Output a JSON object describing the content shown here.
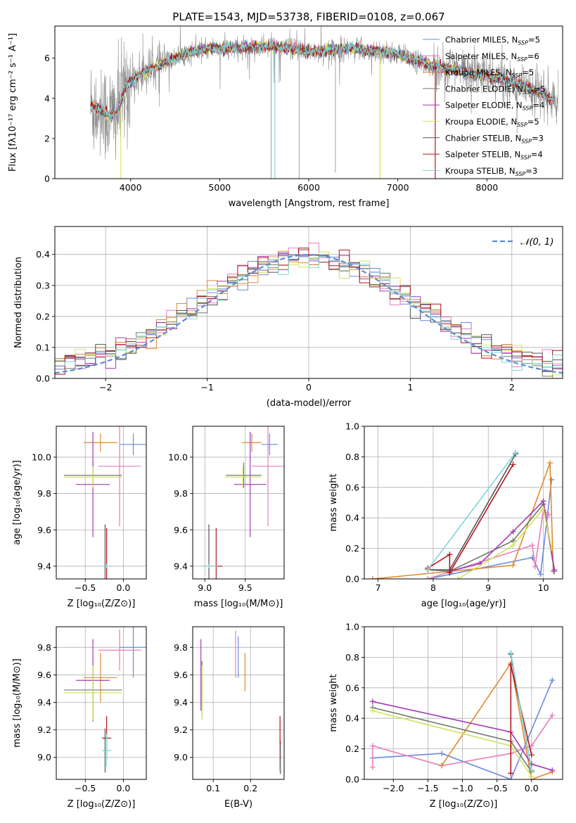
{
  "colors": {
    "chabrier_miles": "#6a8ad8",
    "salpeter_miles": "#e57fbd",
    "kroupa_miles": "#e08a2e",
    "chabrier_elodie": "#6f7a6f",
    "salpeter_elodie": "#a23ab4",
    "kroupa_elodie": "#d2e35a",
    "chabrier_stelib": "#555555",
    "salpeter_stelib": "#b3151f",
    "kroupa_stelib": "#7fd6d6",
    "spectrum": "#8a8a8a",
    "gaussian": "#5b8bd4"
  },
  "legend1": [
    {
      "key": "chabrier_miles",
      "label": "Chabrier MILES, N",
      "sub": "SSP",
      "n": "=5"
    },
    {
      "key": "salpeter_miles",
      "label": "Salpeter MILES, N",
      "sub": "SSP",
      "n": "=6"
    },
    {
      "key": "kroupa_miles",
      "label": "Kroupa MILES, N",
      "sub": "SSP",
      "n": "=5"
    },
    {
      "key": "chabrier_elodie",
      "label": "Chabrier ELODIE, N",
      "sub": "SSP",
      "n": "=5"
    },
    {
      "key": "salpeter_elodie",
      "label": "Salpeter ELODIE, N",
      "sub": "SSP",
      "n": "=4"
    },
    {
      "key": "kroupa_elodie",
      "label": "Kroupa ELODIE, N",
      "sub": "SSP",
      "n": "=5"
    },
    {
      "key": "chabrier_stelib",
      "label": "Chabrier STELIB, N",
      "sub": "SSP",
      "n": "=3"
    },
    {
      "key": "salpeter_stelib",
      "label": "Salpeter STELIB, N",
      "sub": "SSP",
      "n": "=4"
    },
    {
      "key": "kroupa_stelib",
      "label": "Kroupa STELIB, N",
      "sub": "SSP",
      "n": "=3"
    }
  ],
  "chart_data": [
    {
      "id": "spectrum",
      "type": "line",
      "title": "PLATE=1543, MJD=53738, FIBERID=0108, z=0.067",
      "xlabel": "wavelength [Angstrom, rest frame]",
      "ylabel": "Flux [fλ10⁻¹⁷ erg cm⁻² s⁻¹ A⁻¹]",
      "xlim": [
        3150,
        8850
      ],
      "ylim": [
        0,
        7.6
      ],
      "xticks": [
        4000,
        5000,
        6000,
        7000,
        8000
      ],
      "yticks": [
        0,
        2,
        4,
        6
      ],
      "continuum": [
        [
          3560,
          3.6
        ],
        [
          3650,
          3.5
        ],
        [
          3750,
          3.1
        ],
        [
          3850,
          3.3
        ],
        [
          3950,
          4.6
        ],
        [
          4100,
          5.2
        ],
        [
          4300,
          5.6
        ],
        [
          4600,
          6.2
        ],
        [
          4900,
          6.5
        ],
        [
          5200,
          6.5
        ],
        [
          5600,
          6.6
        ],
        [
          6000,
          6.3
        ],
        [
          6500,
          6.5
        ],
        [
          7000,
          6.2
        ],
        [
          7400,
          5.6
        ],
        [
          7800,
          5.3
        ],
        [
          8200,
          4.9
        ],
        [
          8500,
          4.5
        ],
        [
          8800,
          3.8
        ]
      ],
      "data_range": [
        3550,
        8800
      ],
      "model_range": [
        3550,
        8750
      ],
      "legend_loc": "upper right"
    },
    {
      "id": "residuals",
      "type": "step",
      "xlabel": "(data-model)/error",
      "ylabel": "Normed distribution",
      "xlim": [
        -2.5,
        2.5
      ],
      "ylim": [
        0,
        0.49
      ],
      "xticks": [
        -2,
        -1,
        0,
        1,
        2
      ],
      "yticks": [
        0.0,
        0.1,
        0.2,
        0.3,
        0.4
      ],
      "grid": true,
      "gaussian_label": "𝒩(0, 1)",
      "legend_loc": "upper right"
    },
    {
      "id": "age_vs_Z",
      "type": "errorbar",
      "xlabel": "Z [log₁₀(Z/Z⊙)]",
      "ylabel": "age  [log₁₀(age/yr)]",
      "xlim": [
        -0.88,
        0.3
      ],
      "ylim": [
        9.33,
        10.17
      ],
      "xticks": [
        -0.5,
        0.0
      ],
      "yticks": [
        9.4,
        9.6,
        9.8,
        10.0
      ],
      "grid": true,
      "points": [
        {
          "key": "chabrier_miles",
          "x": 0.13,
          "xerr": 0.18,
          "y": 10.07,
          "yerr": 0.06
        },
        {
          "key": "salpeter_miles",
          "x": -0.05,
          "xerr": 0.28,
          "y": 9.95,
          "yerr": 0.33
        },
        {
          "key": "kroupa_miles",
          "x": -0.3,
          "xerr": 0.22,
          "y": 10.08,
          "yerr": 0.05
        },
        {
          "key": "chabrier_elodie",
          "x": -0.4,
          "xerr": 0.38,
          "y": 9.9,
          "yerr": 0.07
        },
        {
          "key": "salpeter_elodie",
          "x": -0.4,
          "xerr": 0.22,
          "y": 9.85,
          "yerr": 0.29
        },
        {
          "key": "kroupa_elodie",
          "x": -0.4,
          "xerr": 0.38,
          "y": 9.89,
          "yerr": 0.06
        },
        {
          "key": "chabrier_stelib",
          "x": -0.24,
          "xerr": 0.02,
          "y": 9.4,
          "yerr": 0.23
        },
        {
          "key": "salpeter_stelib",
          "x": -0.22,
          "xerr": 0.02,
          "y": 9.4,
          "yerr": 0.21
        },
        {
          "key": "kroupa_stelib",
          "x": -0.22,
          "xerr": 0.06,
          "y": 9.4,
          "yerr": 0.01
        }
      ]
    },
    {
      "id": "age_vs_mass",
      "type": "errorbar",
      "xlabel": "mass [log₁₀(M/M⊙)]",
      "ylabel": "",
      "xlim": [
        8.85,
        9.98
      ],
      "ylim": [
        9.33,
        10.17
      ],
      "xticks": [
        9.0,
        9.5
      ],
      "yticks": [
        9.4,
        9.6,
        9.8,
        10.0
      ],
      "grid": true,
      "points": [
        {
          "key": "chabrier_miles",
          "x": 9.8,
          "xerr": 0.1,
          "y": 10.07,
          "yerr": 0.06
        },
        {
          "key": "salpeter_miles",
          "x": 9.78,
          "xerr": 0.2,
          "y": 9.95,
          "yerr": 0.33
        },
        {
          "key": "kroupa_miles",
          "x": 9.58,
          "xerr": 0.12,
          "y": 10.08,
          "yerr": 0.05
        },
        {
          "key": "chabrier_elodie",
          "x": 9.48,
          "xerr": 0.22,
          "y": 9.9,
          "yerr": 0.07
        },
        {
          "key": "salpeter_elodie",
          "x": 9.56,
          "xerr": 0.2,
          "y": 9.85,
          "yerr": 0.29
        },
        {
          "key": "kroupa_elodie",
          "x": 9.47,
          "xerr": 0.22,
          "y": 9.89,
          "yerr": 0.06
        },
        {
          "key": "chabrier_stelib",
          "x": 9.05,
          "xerr": 0.08,
          "y": 9.4,
          "yerr": 0.23
        },
        {
          "key": "salpeter_stelib",
          "x": 9.14,
          "xerr": 0.08,
          "y": 9.4,
          "yerr": 0.21
        },
        {
          "key": "kroupa_stelib",
          "x": 9.05,
          "xerr": 0.1,
          "y": 9.4,
          "yerr": 0.01
        }
      ]
    },
    {
      "id": "weight_vs_age",
      "type": "line",
      "xlabel": "age  [log₁₀(age/yr)]",
      "ylabel": "mass weight",
      "xlim": [
        6.75,
        10.35
      ],
      "ylim": [
        0,
        1.0
      ],
      "xticks": [
        7,
        8,
        9,
        10
      ],
      "yticks": [
        0.0,
        0.2,
        0.4,
        0.6,
        0.8,
        1.0
      ],
      "grid": true,
      "series": [
        {
          "key": "chabrier_miles",
          "x": [
            7.9,
            9.8,
            9.95,
            10.15
          ],
          "y": [
            0.0,
            0.14,
            0.03,
            0.65
          ]
        },
        {
          "key": "salpeter_miles",
          "x": [
            7.9,
            9.8,
            9.85,
            10.0,
            10.1
          ],
          "y": [
            0.0,
            0.22,
            0.08,
            0.45,
            0.42
          ]
        },
        {
          "key": "kroupa_miles",
          "x": [
            6.9,
            9.45,
            10.12,
            10.18
          ],
          "y": [
            0.0,
            0.09,
            0.76,
            0.05
          ]
        },
        {
          "key": "chabrier_elodie",
          "x": [
            7.9,
            8.3,
            9.45,
            10.0,
            10.2
          ],
          "y": [
            0.06,
            0.05,
            0.25,
            0.49,
            0.05
          ]
        },
        {
          "key": "salpeter_elodie",
          "x": [
            8.3,
            8.85,
            9.45,
            10.0,
            10.2
          ],
          "y": [
            0.05,
            0.1,
            0.31,
            0.51,
            0.06
          ]
        },
        {
          "key": "kroupa_elodie",
          "x": [
            8.45,
            9.45,
            10.0,
            10.15
          ],
          "y": [
            0.0,
            0.22,
            0.46,
            0.2
          ]
        },
        {
          "key": "chabrier_stelib",
          "x": [
            7.9,
            8.3,
            9.5
          ],
          "y": [
            0.06,
            0.06,
            0.82
          ]
        },
        {
          "key": "salpeter_stelib",
          "x": [
            7.9,
            8.3,
            8.3,
            9.45
          ],
          "y": [
            0.07,
            0.16,
            0.04,
            0.75
          ]
        },
        {
          "key": "kroupa_stelib",
          "x": [
            7.9,
            9.5
          ],
          "y": [
            0.06,
            0.83
          ]
        }
      ]
    },
    {
      "id": "mass_vs_Z",
      "type": "errorbar",
      "xlabel": "Z [log₁₀(Z/Z⊙)]",
      "ylabel": "mass [log₁₀(M/M⊙)]",
      "xlim": [
        -0.88,
        0.3
      ],
      "ylim": [
        8.84,
        9.95
      ],
      "xticks": [
        -0.5,
        0.0
      ],
      "yticks": [
        9.0,
        9.2,
        9.4,
        9.6,
        9.8
      ],
      "grid": true,
      "points": [
        {
          "key": "chabrier_miles",
          "x": 0.13,
          "xerr": 0.18,
          "y": 9.8,
          "yerr": 0.22
        },
        {
          "key": "salpeter_miles",
          "x": -0.05,
          "xerr": 0.28,
          "y": 9.78,
          "yerr": 0.15
        },
        {
          "key": "kroupa_miles",
          "x": -0.3,
          "xerr": 0.22,
          "y": 9.58,
          "yerr": 0.18
        },
        {
          "key": "chabrier_elodie",
          "x": -0.4,
          "xerr": 0.38,
          "y": 9.49,
          "yerr": 0.2
        },
        {
          "key": "salpeter_elodie",
          "x": -0.4,
          "xerr": 0.22,
          "y": 9.56,
          "yerr": 0.3
        },
        {
          "key": "kroupa_elodie",
          "x": -0.4,
          "xerr": 0.38,
          "y": 9.47,
          "yerr": 0.2
        },
        {
          "key": "chabrier_stelib",
          "x": -0.24,
          "xerr": 0.02,
          "y": 9.05,
          "yerr": 0.16
        },
        {
          "key": "salpeter_stelib",
          "x": -0.22,
          "xerr": 0.06,
          "y": 9.14,
          "yerr": 0.16
        },
        {
          "key": "kroupa_stelib",
          "x": -0.22,
          "xerr": 0.06,
          "y": 9.05,
          "yerr": 0.12
        }
      ]
    },
    {
      "id": "mass_vs_ebv",
      "type": "errorbar",
      "xlabel": "E(B-V)",
      "ylabel": "",
      "xlim": [
        0.045,
        0.29
      ],
      "ylim": [
        8.84,
        9.95
      ],
      "xticks": [
        0.1,
        0.2
      ],
      "yticks": [
        9.0,
        9.2,
        9.4,
        9.6,
        9.8
      ],
      "grid": true,
      "points": [
        {
          "key": "chabrier_miles",
          "x": 0.167,
          "xerr": 0,
          "y": 9.73,
          "yerr": 0.15
        },
        {
          "key": "salpeter_miles",
          "x": 0.16,
          "xerr": 0,
          "y": 9.75,
          "yerr": 0.17
        },
        {
          "key": "kroupa_miles",
          "x": 0.185,
          "xerr": 0,
          "y": 9.62,
          "yerr": 0.14
        },
        {
          "key": "chabrier_elodie",
          "x": 0.07,
          "xerr": 0,
          "y": 9.5,
          "yerr": 0.2
        },
        {
          "key": "salpeter_elodie",
          "x": 0.067,
          "xerr": 0,
          "y": 9.6,
          "yerr": 0.26
        },
        {
          "key": "kroupa_elodie",
          "x": 0.07,
          "xerr": 0,
          "y": 9.47,
          "yerr": 0.2
        },
        {
          "key": "chabrier_stelib",
          "x": 0.28,
          "xerr": 0,
          "y": 9.0,
          "yerr": 0.12
        },
        {
          "key": "salpeter_stelib",
          "x": 0.279,
          "xerr": 0,
          "y": 9.14,
          "yerr": 0.16
        },
        {
          "key": "kroupa_stelib",
          "x": 0.278,
          "xerr": 0,
          "y": 9.0,
          "yerr": 0.1
        }
      ]
    },
    {
      "id": "weight_vs_Z",
      "type": "line",
      "xlabel": "Z [log₁₀(Z/Z⊙)]",
      "ylabel": "mass weight",
      "xlim": [
        -2.42,
        0.45
      ],
      "ylim": [
        0,
        1.0
      ],
      "xticks": [
        -2.0,
        -1.5,
        -1.0,
        -0.5,
        0.0
      ],
      "yticks": [
        0.0,
        0.2,
        0.4,
        0.6,
        0.8,
        1.0
      ],
      "grid": true,
      "series": [
        {
          "key": "chabrier_miles",
          "x": [
            -2.3,
            -1.3,
            -0.3,
            0.3
          ],
          "y": [
            0.14,
            0.17,
            0.0,
            0.65
          ]
        },
        {
          "key": "salpeter_miles",
          "x": [
            -2.3,
            -2.3,
            -1.3,
            -0.3,
            0.0,
            0.3
          ],
          "y": [
            0.08,
            0.22,
            0.09,
            0.17,
            0.22,
            0.42
          ]
        },
        {
          "key": "kroupa_miles",
          "x": [
            -1.3,
            -0.3,
            0.0,
            0.3
          ],
          "y": [
            0.09,
            0.76,
            0.0,
            0.05
          ]
        },
        {
          "key": "chabrier_elodie",
          "x": [
            -2.3,
            -0.3,
            0.0
          ],
          "y": [
            0.47,
            0.25,
            0.05
          ]
        },
        {
          "key": "salpeter_elodie",
          "x": [
            -2.3,
            -0.3,
            0.0,
            0.3
          ],
          "y": [
            0.51,
            0.31,
            0.1,
            0.06
          ]
        },
        {
          "key": "kroupa_elodie",
          "x": [
            -2.3,
            -0.3,
            0.0
          ],
          "y": [
            0.45,
            0.22,
            0.02
          ]
        },
        {
          "key": "chabrier_stelib",
          "x": [
            -0.3,
            0.0
          ],
          "y": [
            0.82,
            0.06
          ]
        },
        {
          "key": "salpeter_stelib",
          "x": [
            -0.3,
            -0.3,
            0.0
          ],
          "y": [
            0.04,
            0.75,
            0.16
          ]
        },
        {
          "key": "kroupa_stelib",
          "x": [
            -0.3,
            0.0
          ],
          "y": [
            0.83,
            0.06
          ]
        }
      ]
    }
  ]
}
